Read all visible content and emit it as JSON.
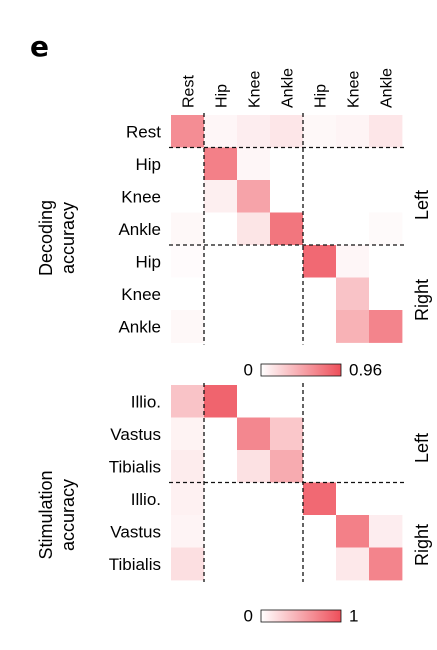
{
  "figure": {
    "panel_label": "e",
    "col_labels": [
      "Rest",
      "Hip",
      "Knee",
      "Ankle",
      "Hip",
      "Knee",
      "Ankle"
    ],
    "accent_color": "#EE4F5A"
  },
  "chart_data": [
    {
      "type": "heatmap",
      "ylabel": "Decoding\naccuracy",
      "row_labels": [
        "Rest",
        "Hip",
        "Knee",
        "Ankle",
        "Hip",
        "Knee",
        "Ankle"
      ],
      "col_labels": [
        "Rest",
        "Hip",
        "Knee",
        "Ankle",
        "Hip",
        "Knee",
        "Ankle"
      ],
      "group_labels": [
        "Left",
        "Right"
      ],
      "colorbar": {
        "min": 0,
        "max": 0.96,
        "min_label": "0",
        "max_label": "0.96"
      },
      "values": [
        [
          0.65,
          0.05,
          0.1,
          0.14,
          0.04,
          0.06,
          0.14
        ],
        [
          0.0,
          0.72,
          0.05,
          0.0,
          0.0,
          0.0,
          0.0
        ],
        [
          0.0,
          0.09,
          0.52,
          0.0,
          0.0,
          0.0,
          0.0
        ],
        [
          0.04,
          0.0,
          0.15,
          0.78,
          0.0,
          0.0,
          0.03
        ],
        [
          0.02,
          0.0,
          0.0,
          0.0,
          0.85,
          0.05,
          0.0
        ],
        [
          0.0,
          0.0,
          0.0,
          0.0,
          0.0,
          0.34,
          0.0
        ],
        [
          0.04,
          0.0,
          0.0,
          0.0,
          0.0,
          0.44,
          0.7
        ]
      ]
    },
    {
      "type": "heatmap",
      "ylabel": "Stimulation\naccuracy",
      "row_labels": [
        "Illio.",
        "Vastus",
        "Tibialis",
        "Illio.",
        "Vastus",
        "Tibialis"
      ],
      "col_labels": [
        "Rest",
        "Hip",
        "Knee",
        "Ankle",
        "Hip",
        "Knee",
        "Ankle"
      ],
      "group_labels": [
        "Left",
        "Right"
      ],
      "colorbar": {
        "min": 0,
        "max": 1,
        "min_label": "0",
        "max_label": "1"
      },
      "values": [
        [
          0.34,
          0.88,
          0.0,
          0.0,
          0.0,
          0.0,
          0.0
        ],
        [
          0.07,
          0.0,
          0.68,
          0.32,
          0.0,
          0.0,
          0.0
        ],
        [
          0.11,
          0.0,
          0.17,
          0.48,
          0.0,
          0.0,
          0.0
        ],
        [
          0.08,
          0.0,
          0.0,
          0.0,
          0.85,
          0.0,
          0.0
        ],
        [
          0.06,
          0.0,
          0.0,
          0.0,
          0.0,
          0.72,
          0.1
        ],
        [
          0.18,
          0.0,
          0.0,
          0.0,
          0.0,
          0.13,
          0.7
        ]
      ]
    }
  ]
}
